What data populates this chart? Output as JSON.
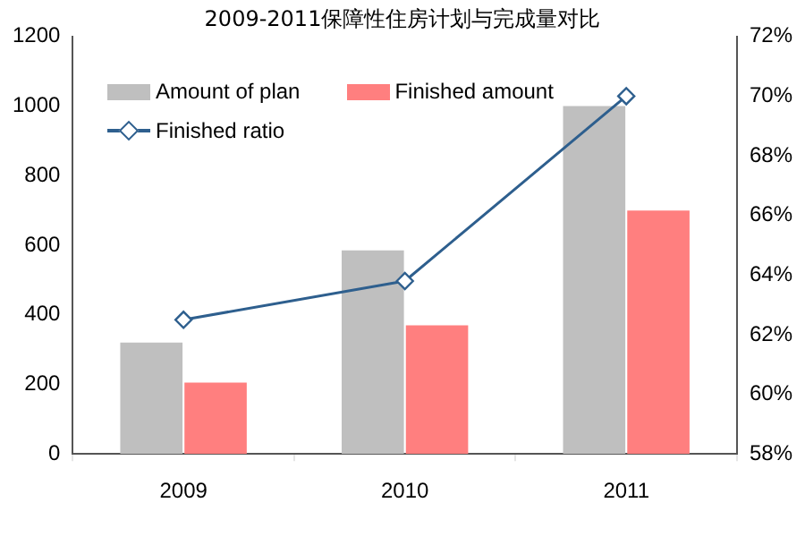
{
  "chart_data": {
    "type": "bar",
    "title": "2009-2011保障性住房计划与完成量对比",
    "categories": [
      "2009",
      "2010",
      "2011"
    ],
    "series": [
      {
        "name": "Amount of plan",
        "color": "#bfbfbf",
        "values": [
          320,
          585,
          1000
        ]
      },
      {
        "name": "Finished amount",
        "color": "#ff7f7f",
        "values": [
          205,
          370,
          700
        ]
      },
      {
        "name": "Finished ratio",
        "type": "line",
        "axis": "y2",
        "color": "#2e5f8e",
        "values": [
          62.5,
          63.8,
          70
        ]
      }
    ],
    "ylim": [
      0,
      1200
    ],
    "yticks": [
      0,
      200,
      400,
      600,
      800,
      1000,
      1200
    ],
    "y2lim": [
      58,
      72
    ],
    "y2ticks": [
      {
        "value": 58,
        "label": "58%"
      },
      {
        "value": 60,
        "label": "60%"
      },
      {
        "value": 62,
        "label": "62%"
      },
      {
        "value": 64,
        "label": "64%"
      },
      {
        "value": 66,
        "label": "66%"
      },
      {
        "value": 68,
        "label": "68%"
      },
      {
        "value": 70,
        "label": "70%"
      },
      {
        "value": 72,
        "label": "72%"
      }
    ],
    "marker": "diamond",
    "grid": false,
    "legend": "top left"
  }
}
